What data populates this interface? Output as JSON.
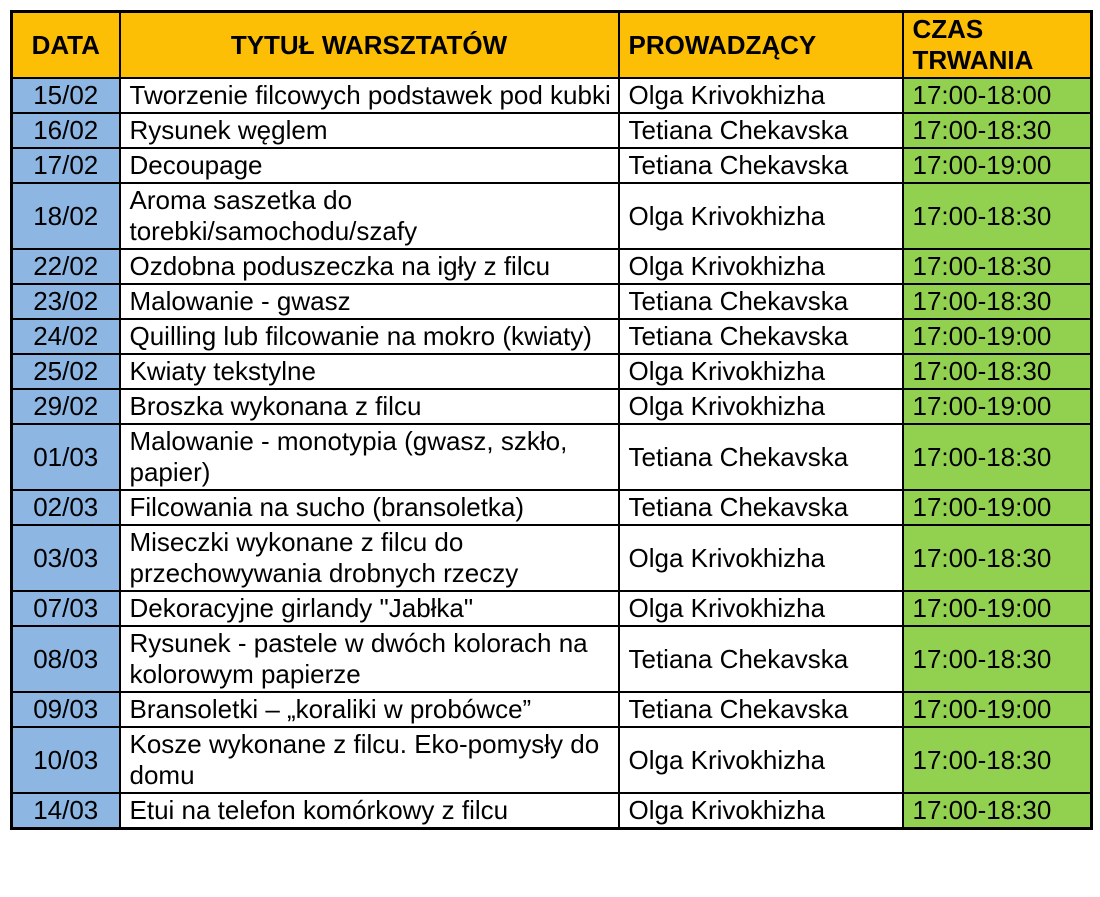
{
  "colors": {
    "header_bg": "#fcbf05",
    "date_bg": "#8eb6e3",
    "time_bg": "#92d050",
    "border": "#000000"
  },
  "table": {
    "headers": {
      "date": "DATA",
      "title": "TYTUŁ WARSZTATÓW",
      "instructor": "PROWADZĄCY",
      "time": "CZAS TRWANIA"
    },
    "rows": [
      {
        "date": "15/02",
        "title": "Tworzenie filcowych podstawek pod kubki",
        "instructor": "Olga Krivokhizha",
        "time": "17:00-18:00"
      },
      {
        "date": "16/02",
        "title": "Rysunek węglem",
        "instructor": "Tetiana Chekavska",
        "time": "17:00-18:30"
      },
      {
        "date": "17/02",
        "title": "Decoupage",
        "instructor": "Tetiana Chekavska",
        "time": "17:00-19:00"
      },
      {
        "date": "18/02",
        "title": "Aroma saszetka do torebki/samochodu/szafy",
        "instructor": "Olga Krivokhizha",
        "time": "17:00-18:30"
      },
      {
        "date": "22/02",
        "title": "Ozdobna poduszeczka na igły z filcu",
        "instructor": "Olga Krivokhizha",
        "time": "17:00-18:30"
      },
      {
        "date": "23/02",
        "title": "Malowanie - gwasz",
        "instructor": "Tetiana Chekavska",
        "time": "17:00-18:30"
      },
      {
        "date": "24/02",
        "title": "Quilling lub filcowanie na mokro (kwiaty)",
        "instructor": "Tetiana Chekavska",
        "time": "17:00-19:00"
      },
      {
        "date": "25/02",
        "title": "Kwiaty tekstylne",
        "instructor": "Olga Krivokhizha",
        "time": "17:00-18:30"
      },
      {
        "date": "29/02",
        "title": "Broszka wykonana z filcu",
        "instructor": "Olga Krivokhizha",
        "time": "17:00-19:00"
      },
      {
        "date": "01/03",
        "title": "Malowanie - monotypia (gwasz, szkło, papier)",
        "instructor": "Tetiana Chekavska",
        "time": "17:00-18:30"
      },
      {
        "date": "02/03",
        "title": "Filcowania na sucho (bransoletka)",
        "instructor": "Tetiana Chekavska",
        "time": "17:00-19:00"
      },
      {
        "date": "03/03",
        "title": "Miseczki wykonane z filcu do przechowywania drobnych rzeczy",
        "instructor": "Olga Krivokhizha",
        "time": "17:00-18:30"
      },
      {
        "date": "07/03",
        "title": "Dekoracyjne girlandy \"Jabłka\"",
        "instructor": "Olga Krivokhizha",
        "time": "17:00-19:00"
      },
      {
        "date": "08/03",
        "title": "Rysunek - pastele w dwóch kolorach na kolorowym papierze",
        "instructor": "Tetiana Chekavska",
        "time": "17:00-18:30"
      },
      {
        "date": "09/03",
        "title": "Bransoletki – „koraliki w probówce”",
        "instructor": "Tetiana Chekavska",
        "time": "17:00-19:00"
      },
      {
        "date": "10/03",
        "title": "Kosze wykonane z filcu. Eko-pomysły do domu",
        "instructor": "Olga Krivokhizha",
        "time": "17:00-18:30"
      },
      {
        "date": "14/03",
        "title": "Etui na telefon komórkowy z filcu",
        "instructor": "Olga Krivokhizha",
        "time": "17:00-18:30"
      }
    ]
  }
}
